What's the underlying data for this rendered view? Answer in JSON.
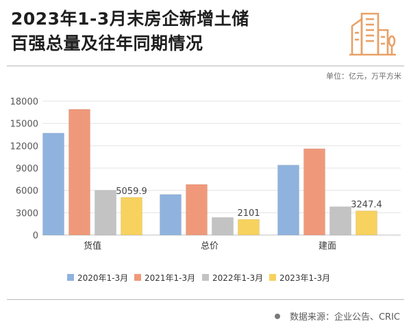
{
  "header": {
    "title_line1": "2023年1-3月末房企新增土储",
    "title_line2": "百强总量及往年同期情况",
    "logo_icon": "city-buildings-icon"
  },
  "unit": "单位：亿元，万平方米",
  "source": "数据来源：企业公告、CRIC",
  "colors": {
    "accent": "#e9a066",
    "s2020": "#8fb3de",
    "s2021": "#f0997a",
    "s2022": "#c3c3c3",
    "s2023": "#f7d25e"
  },
  "chart_data": {
    "type": "bar",
    "categories": [
      "货值",
      "总价",
      "建面"
    ],
    "series": [
      {
        "name": "2020年1-3月",
        "values": [
          13700,
          5450,
          9400
        ]
      },
      {
        "name": "2021年1-3月",
        "values": [
          16900,
          6800,
          11600
        ]
      },
      {
        "name": "2022年1-3月",
        "values": [
          6000,
          2350,
          3800
        ]
      },
      {
        "name": "2023年1-3月",
        "values": [
          5059.9,
          2101,
          3247.4
        ]
      }
    ],
    "data_labels": {
      "series_index": 3,
      "labels": [
        "5059.9",
        "2101",
        "3247.4"
      ]
    },
    "yticks": [
      "0",
      "3000",
      "6000",
      "9000",
      "12000",
      "15000",
      "18000"
    ],
    "ylim": [
      0,
      18000
    ],
    "grid": true,
    "legend_position": "bottom"
  }
}
